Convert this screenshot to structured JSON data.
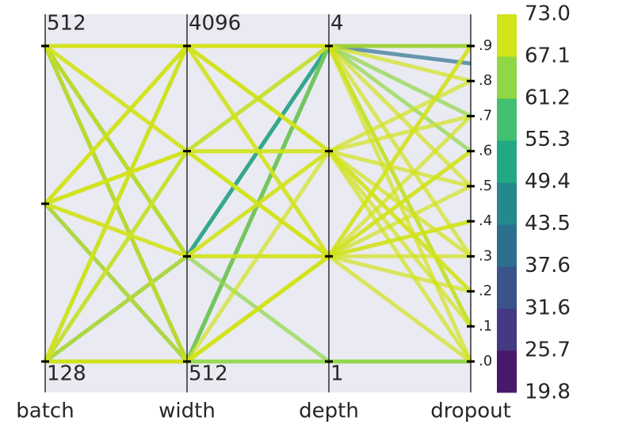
{
  "chart_data": {
    "type": "parallel_coordinates",
    "dimensions": [
      {
        "name": "batch",
        "lim": [
          128,
          512
        ],
        "log": true,
        "ticks": [
          512,
          128
        ],
        "minor_ticks": [
          256
        ]
      },
      {
        "name": "width",
        "lim": [
          512,
          4096
        ],
        "log": true,
        "ticks": [
          4096,
          512
        ],
        "minor_ticks": [
          2048,
          1024
        ]
      },
      {
        "name": "depth",
        "lim": [
          1,
          4
        ],
        "log": false,
        "ticks": [
          4,
          1
        ],
        "minor_ticks": [
          3,
          2
        ]
      },
      {
        "name": "dropout",
        "lim": [
          0,
          0.9
        ],
        "log": false,
        "ticks": [
          {
            "value": 0.9,
            "label": ".9"
          },
          {
            "value": 0.8,
            "label": ".8"
          },
          {
            "value": 0.7,
            "label": ".7"
          },
          {
            "value": 0.6,
            "label": ".6"
          },
          {
            "value": 0.5,
            "label": ".5"
          },
          {
            "value": 0.4,
            "label": ".4"
          },
          {
            "value": 0.3,
            "label": ".3"
          },
          {
            "value": 0.2,
            "label": ".2"
          },
          {
            "value": 0.1,
            "label": ".1"
          },
          {
            "value": 0,
            "label": ".0"
          }
        ],
        "minor_ticks": []
      }
    ],
    "lines": [
      [
        512,
        4096,
        4,
        0.9,
        72
      ],
      [
        512,
        4096,
        4,
        0.5,
        72.5
      ],
      [
        512,
        4096,
        3,
        0.1,
        71
      ],
      [
        512,
        2048,
        3,
        0.3,
        72
      ],
      [
        512,
        1024,
        4,
        0.9,
        45
      ],
      [
        512,
        512,
        4,
        0.85,
        40
      ],
      [
        512,
        512,
        1,
        0,
        66
      ],
      [
        512,
        2048,
        2,
        0.6,
        72
      ],
      [
        512,
        4096,
        2,
        0.2,
        71.5
      ],
      [
        512,
        1024,
        1,
        0,
        64
      ],
      [
        256,
        4096,
        4,
        0.8,
        72
      ],
      [
        256,
        2048,
        4,
        0.3,
        72.8
      ],
      [
        256,
        1024,
        3,
        0.7,
        71
      ],
      [
        256,
        512,
        4,
        0.9,
        50
      ],
      [
        256,
        4096,
        3,
        0,
        72
      ],
      [
        256,
        2048,
        2,
        0.4,
        71
      ],
      [
        256,
        1024,
        2,
        0.9,
        70
      ],
      [
        128,
        512,
        2,
        0.5,
        72
      ],
      [
        128,
        512,
        3,
        0.2,
        72
      ],
      [
        128,
        4096,
        4,
        0.7,
        66
      ],
      [
        128,
        2048,
        4,
        0.6,
        64
      ],
      [
        128,
        1024,
        4,
        0.9,
        55
      ],
      [
        128,
        512,
        1,
        0,
        63
      ],
      [
        128,
        512,
        4,
        0.1,
        62
      ],
      [
        128,
        4096,
        3,
        0.8,
        72
      ],
      [
        128,
        2048,
        2,
        0,
        72
      ],
      [
        128,
        1024,
        2,
        0.3,
        70
      ],
      [
        256,
        512,
        2,
        0.6,
        72
      ],
      [
        512,
        4096,
        4,
        0,
        72
      ],
      [
        128,
        512,
        2,
        0.9,
        71
      ],
      [
        256,
        4096,
        4,
        0.1,
        71
      ],
      [
        512,
        1024,
        3,
        0.5,
        71
      ],
      [
        128,
        4096,
        2,
        0.4,
        72
      ],
      [
        512,
        512,
        2,
        0.7,
        72
      ],
      [
        256,
        2048,
        3,
        0.2,
        71
      ]
    ],
    "colorbar": {
      "lim": [
        19.8,
        73
      ],
      "ticks": [
        {
          "value": 73,
          "label": "73.0"
        },
        67.1,
        61.2,
        55.3,
        49.4,
        43.5,
        37.6,
        31.6,
        25.7,
        19.8
      ],
      "colors": [
        "#48186a",
        "#443983",
        "#3b528b",
        "#2d708e",
        "#23898e",
        "#22a884",
        "#43bf71",
        "#8fd744",
        "#d2e21b"
      ]
    }
  }
}
